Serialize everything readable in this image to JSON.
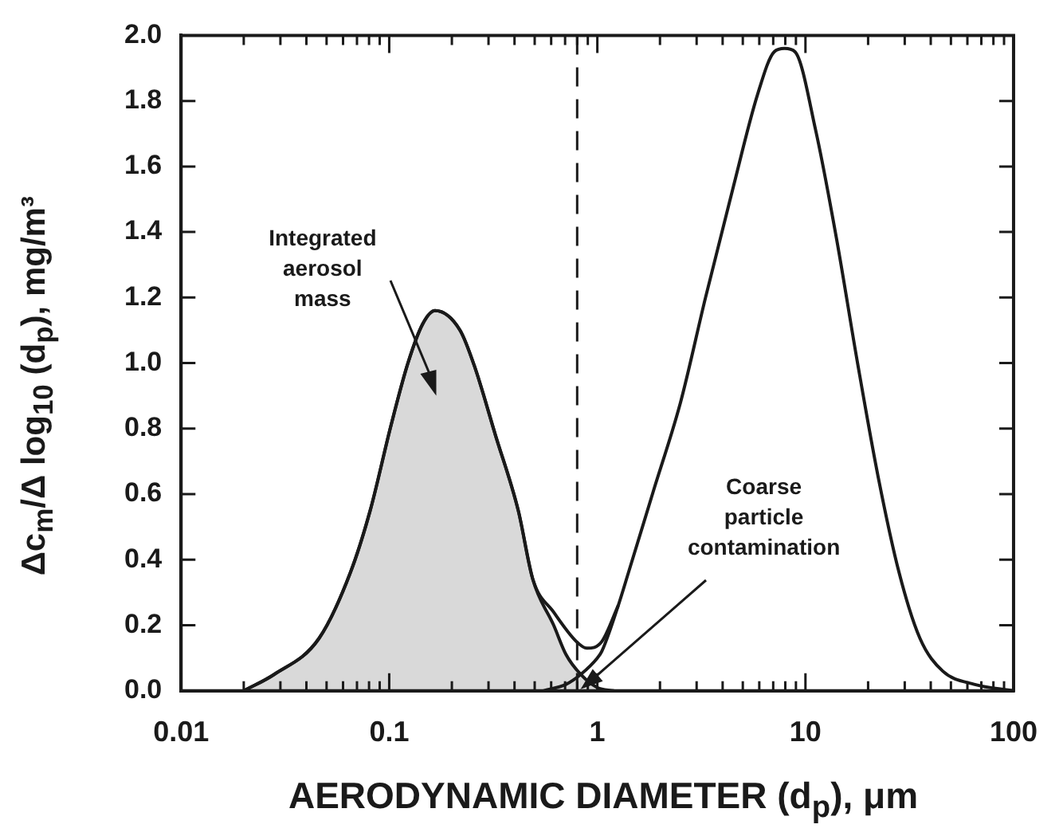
{
  "chart_data": {
    "type": "line",
    "xlabel": "AERODYNAMIC DIAMETER (d$_{p}$), μm",
    "ylabel": "Δc$_{m}$/Δ log$_{10}$ (d$_{p}$), mg/m³",
    "log": "x",
    "xlim": [
      0.01,
      100
    ],
    "ylim": [
      0,
      2.0
    ],
    "xticks": [
      0.01,
      {
        "value": 0.02,
        "label": null
      },
      {
        "value": 0.03,
        "label": null
      },
      {
        "value": 0.04,
        "label": null
      },
      {
        "value": 0.05,
        "label": null
      },
      {
        "value": 0.06,
        "label": null
      },
      {
        "value": 0.07,
        "label": null
      },
      {
        "value": 0.08,
        "label": null
      },
      {
        "value": 0.09,
        "label": null
      },
      0.1,
      {
        "value": 0.2,
        "label": null
      },
      {
        "value": 0.3,
        "label": null
      },
      {
        "value": 0.4,
        "label": null
      },
      {
        "value": 0.5,
        "label": null
      },
      {
        "value": 0.6,
        "label": null
      },
      {
        "value": 0.7,
        "label": null
      },
      {
        "value": 0.8,
        "label": null
      },
      {
        "value": 0.9,
        "label": null
      },
      1,
      {
        "value": 2,
        "label": null
      },
      {
        "value": 3,
        "label": null
      },
      {
        "value": 4,
        "label": null
      },
      {
        "value": 5,
        "label": null
      },
      {
        "value": 6,
        "label": null
      },
      {
        "value": 7,
        "label": null
      },
      {
        "value": 8,
        "label": null
      },
      {
        "value": 9,
        "label": null
      },
      10,
      {
        "value": 20,
        "label": null
      },
      {
        "value": 30,
        "label": null
      },
      {
        "value": 40,
        "label": null
      },
      {
        "value": 50,
        "label": null
      },
      {
        "value": 60,
        "label": null
      },
      {
        "value": 70,
        "label": null
      },
      {
        "value": 80,
        "label": null
      },
      {
        "value": 90,
        "label": null
      },
      100
    ],
    "yticks": [
      {
        "value": 0,
        "label": "0.0"
      },
      0.2,
      0.4,
      0.6,
      0.8,
      {
        "value": 1.0,
        "label": "1.0"
      },
      1.2,
      1.4,
      1.6,
      1.8,
      {
        "value": 2.0,
        "label": "2.0"
      }
    ],
    "grid": false,
    "legend": false,
    "marker": "none",
    "series": [
      {
        "type": "area",
        "color": "#d9d9d9",
        "x": [
          0.02,
          0.028,
          0.046,
          0.065,
          0.081,
          0.102,
          0.123,
          0.145,
          0.166,
          0.219,
          0.257,
          0.324,
          0.417,
          0.49,
          0.617,
          0.708,
          0.832,
          1.0,
          1.2
        ],
        "values": [
          0,
          0.05,
          0.16,
          0.36,
          0.55,
          0.81,
          1.0,
          1.12,
          1.16,
          1.1,
          0.99,
          0.78,
          0.55,
          0.34,
          0.2,
          0.11,
          0.05,
          0.01,
          0
        ]
      },
      {
        "color": "#1a1a1a",
        "x": [
          0.55,
          0.708,
          0.832,
          1.0,
          1.05,
          1.26,
          1.41,
          1.86,
          2.51,
          3.31,
          4.47,
          5.89,
          7.08,
          7.94,
          8.91,
          11.2,
          14.1,
          17.8,
          22.4,
          28.2,
          35.5,
          45.7,
          64.6,
          100
        ],
        "values": [
          0,
          0.02,
          0.05,
          0.1,
          0.12,
          0.26,
          0.36,
          0.61,
          0.88,
          1.2,
          1.53,
          1.82,
          1.95,
          1.96,
          1.95,
          1.71,
          1.38,
          1.0,
          0.65,
          0.36,
          0.16,
          0.06,
          0.02,
          0
        ]
      },
      {
        "color": "#1a1a1a",
        "x": [
          0.02,
          0.028,
          0.046,
          0.065,
          0.081,
          0.102,
          0.123,
          0.145,
          0.166,
          0.219,
          0.257,
          0.324,
          0.417,
          0.49,
          0.617,
          0.794,
          0.891,
          1.05,
          1.26
        ],
        "values": [
          0,
          0.05,
          0.16,
          0.36,
          0.55,
          0.81,
          1.0,
          1.12,
          1.16,
          1.1,
          0.99,
          0.78,
          0.55,
          0.34,
          0.24,
          0.15,
          0.13,
          0.15,
          0.26
        ]
      }
    ],
    "ref_lines": [
      {
        "axis": "x",
        "value": 0.8,
        "line_style": "dashed",
        "color": "#1a1a1a"
      }
    ],
    "annotations": [
      "Integrated\naerosol\nmass",
      "Coarse\nparticle\ncontamination"
    ]
  }
}
